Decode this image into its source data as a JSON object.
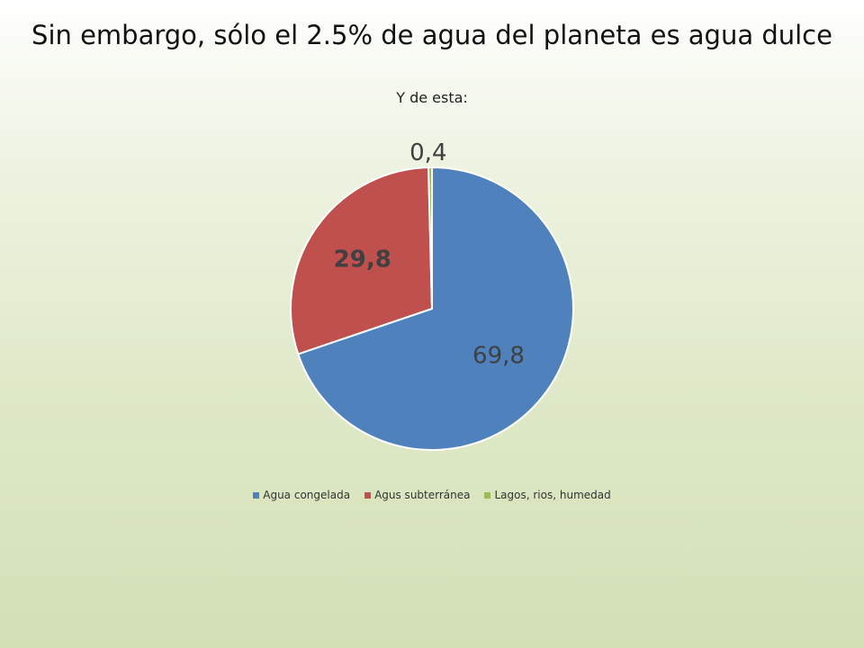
{
  "slide": {
    "title": "Sin embargo, sólo el 2.5% de agua del planeta es agua dulce"
  },
  "chart_data": {
    "type": "pie",
    "title": "Y de esta:",
    "categories": [
      "Agua congelada",
      "Agus subterránea",
      "Lagos, rios, humedad"
    ],
    "values": [
      69.8,
      29.8,
      0.4
    ],
    "data_labels": [
      "69,8",
      "29,8",
      "0,4"
    ],
    "colors": [
      "#4f81bd",
      "#c0504d",
      "#9bbb59"
    ],
    "legend_position": "bottom"
  }
}
